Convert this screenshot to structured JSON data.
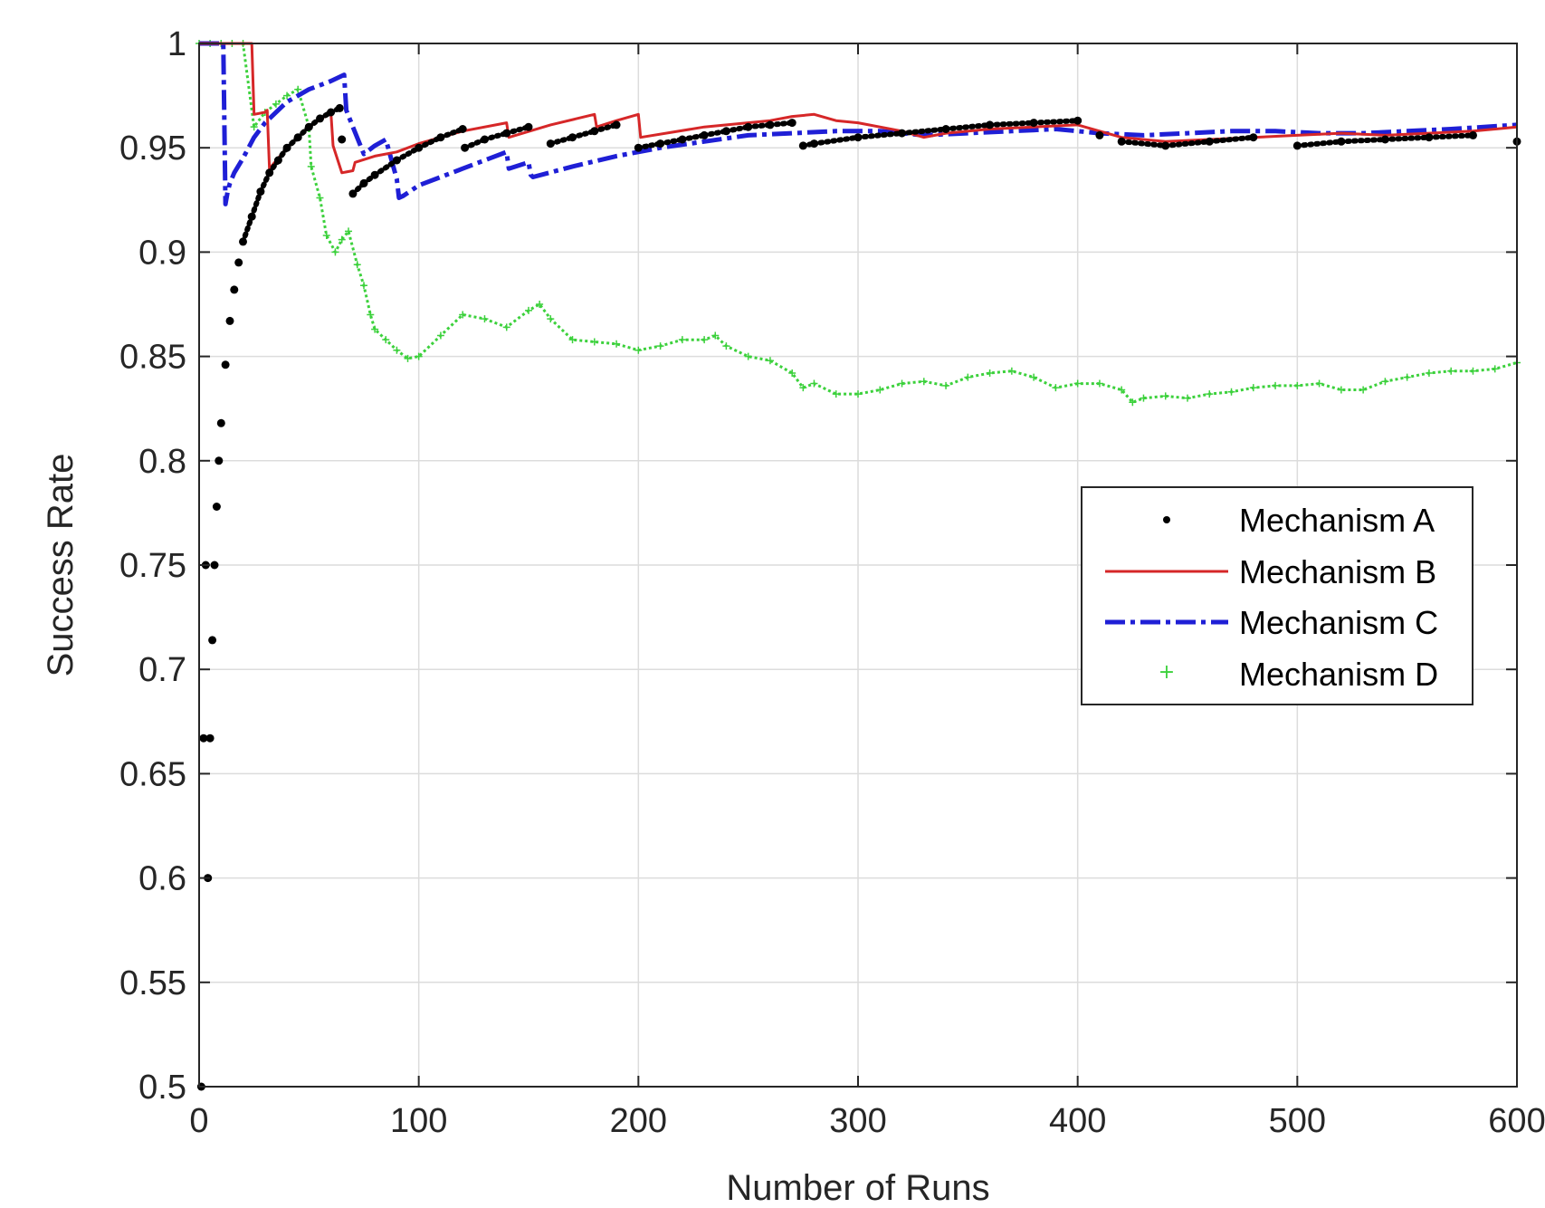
{
  "chart_data": {
    "type": "line",
    "xlabel": "Number of Runs",
    "ylabel": "Success Rate",
    "xlim": [
      0,
      600
    ],
    "ylim": [
      0.5,
      1
    ],
    "x_ticks": [
      "0",
      "100",
      "200",
      "300",
      "400",
      "500",
      "600"
    ],
    "y_ticks": [
      "0.5",
      "0.55",
      "0.6",
      "0.65",
      "0.7",
      "0.75",
      "0.8",
      "0.85",
      "0.9",
      "0.95",
      "1"
    ],
    "grid": true,
    "legend_position": "right, middle",
    "series": [
      {
        "name": "Mechanism A",
        "color": "#000000",
        "style": "dots",
        "x": [
          1,
          2,
          3,
          4,
          5,
          6,
          7,
          8,
          9,
          10,
          12,
          14,
          16,
          18,
          20,
          24,
          28,
          32,
          36,
          40,
          45,
          50,
          55,
          60,
          64,
          65,
          70,
          75,
          80,
          90,
          100,
          110,
          120,
          121,
          130,
          140,
          150,
          160,
          170,
          180,
          190,
          200,
          210,
          220,
          230,
          240,
          250,
          260,
          270,
          275,
          280,
          300,
          320,
          340,
          360,
          380,
          400,
          410,
          420,
          440,
          460,
          480,
          500,
          520,
          540,
          560,
          580,
          600
        ],
        "y": [
          0.5,
          0.667,
          0.75,
          0.6,
          0.667,
          0.714,
          0.75,
          0.778,
          0.8,
          0.818,
          0.846,
          0.867,
          0.882,
          0.895,
          0.905,
          0.917,
          0.929,
          0.938,
          0.944,
          0.95,
          0.955,
          0.96,
          0.964,
          0.967,
          0.969,
          0.954,
          0.928,
          0.933,
          0.937,
          0.944,
          0.95,
          0.955,
          0.959,
          0.95,
          0.954,
          0.957,
          0.96,
          0.952,
          0.955,
          0.958,
          0.961,
          0.95,
          0.952,
          0.954,
          0.956,
          0.958,
          0.96,
          0.961,
          0.962,
          0.951,
          0.952,
          0.955,
          0.957,
          0.959,
          0.961,
          0.962,
          0.963,
          0.956,
          0.953,
          0.951,
          0.953,
          0.955,
          0.951,
          0.953,
          0.954,
          0.955,
          0.956,
          0.953
        ]
      },
      {
        "name": "Mechanism B",
        "color": "#d62728",
        "style": "solid",
        "x": [
          0,
          24,
          25,
          30,
          31,
          32,
          40,
          50,
          60,
          61,
          65,
          70,
          71,
          80,
          90,
          100,
          120,
          140,
          141,
          160,
          180,
          181,
          190,
          200,
          201,
          230,
          260,
          270,
          280,
          290,
          300,
          320,
          330,
          340,
          360,
          380,
          400,
          410,
          420,
          440,
          460,
          480,
          500,
          520,
          540,
          560,
          580,
          600
        ],
        "y": [
          1,
          1,
          0.966,
          0.967,
          0.968,
          0.94,
          0.95,
          0.96,
          0.967,
          0.951,
          0.938,
          0.939,
          0.943,
          0.946,
          0.948,
          0.952,
          0.958,
          0.962,
          0.955,
          0.961,
          0.966,
          0.96,
          0.963,
          0.966,
          0.955,
          0.96,
          0.963,
          0.965,
          0.966,
          0.963,
          0.962,
          0.958,
          0.955,
          0.957,
          0.959,
          0.96,
          0.961,
          0.958,
          0.955,
          0.953,
          0.954,
          0.955,
          0.956,
          0.957,
          0.956,
          0.957,
          0.958,
          0.96
        ]
      },
      {
        "name": "Mechanism C",
        "color": "#1f1fd6",
        "style": "dashdot",
        "x": [
          0,
          11,
          12,
          13,
          14,
          16,
          20,
          25,
          30,
          40,
          50,
          60,
          66,
          67,
          70,
          75,
          80,
          85,
          90,
          91,
          93,
          100,
          110,
          120,
          130,
          140,
          141,
          150,
          151,
          152,
          170,
          190,
          210,
          230,
          250,
          270,
          290,
          310,
          330,
          350,
          370,
          390,
          410,
          430,
          450,
          470,
          490,
          510,
          530,
          550,
          570,
          600
        ],
        "y": [
          1,
          1,
          0.923,
          0.929,
          0.933,
          0.938,
          0.945,
          0.955,
          0.962,
          0.972,
          0.978,
          0.982,
          0.985,
          0.968,
          0.96,
          0.947,
          0.951,
          0.954,
          0.935,
          0.926,
          0.927,
          0.932,
          0.936,
          0.94,
          0.944,
          0.948,
          0.94,
          0.943,
          0.937,
          0.936,
          0.941,
          0.946,
          0.95,
          0.953,
          0.956,
          0.957,
          0.958,
          0.958,
          0.956,
          0.957,
          0.958,
          0.959,
          0.957,
          0.956,
          0.957,
          0.958,
          0.958,
          0.957,
          0.957,
          0.958,
          0.959,
          0.961
        ]
      },
      {
        "name": "Mechanism D",
        "color": "#3cd13c",
        "style": "plus",
        "x": [
          0,
          5,
          10,
          15,
          20,
          25,
          30,
          35,
          40,
          45,
          50,
          51,
          55,
          58,
          62,
          65,
          68,
          72,
          75,
          78,
          80,
          85,
          90,
          95,
          100,
          110,
          120,
          130,
          140,
          150,
          155,
          160,
          170,
          180,
          190,
          200,
          210,
          220,
          230,
          235,
          240,
          250,
          260,
          270,
          275,
          280,
          290,
          300,
          310,
          320,
          330,
          340,
          350,
          360,
          370,
          380,
          390,
          400,
          410,
          420,
          425,
          430,
          440,
          450,
          460,
          470,
          480,
          490,
          500,
          510,
          520,
          530,
          540,
          550,
          560,
          570,
          580,
          590,
          600
        ],
        "y": [
          1,
          1,
          1,
          1,
          1,
          0.96,
          0.967,
          0.971,
          0.975,
          0.978,
          0.96,
          0.941,
          0.926,
          0.908,
          0.9,
          0.906,
          0.91,
          0.894,
          0.884,
          0.87,
          0.863,
          0.858,
          0.853,
          0.849,
          0.85,
          0.86,
          0.87,
          0.868,
          0.864,
          0.872,
          0.875,
          0.868,
          0.858,
          0.857,
          0.856,
          0.853,
          0.855,
          0.858,
          0.858,
          0.86,
          0.855,
          0.85,
          0.848,
          0.842,
          0.835,
          0.837,
          0.832,
          0.832,
          0.834,
          0.837,
          0.838,
          0.836,
          0.84,
          0.842,
          0.843,
          0.84,
          0.835,
          0.837,
          0.837,
          0.834,
          0.828,
          0.83,
          0.831,
          0.83,
          0.832,
          0.833,
          0.835,
          0.836,
          0.836,
          0.837,
          0.834,
          0.834,
          0.838,
          0.84,
          0.842,
          0.843,
          0.843,
          0.844,
          0.847
        ]
      }
    ]
  }
}
